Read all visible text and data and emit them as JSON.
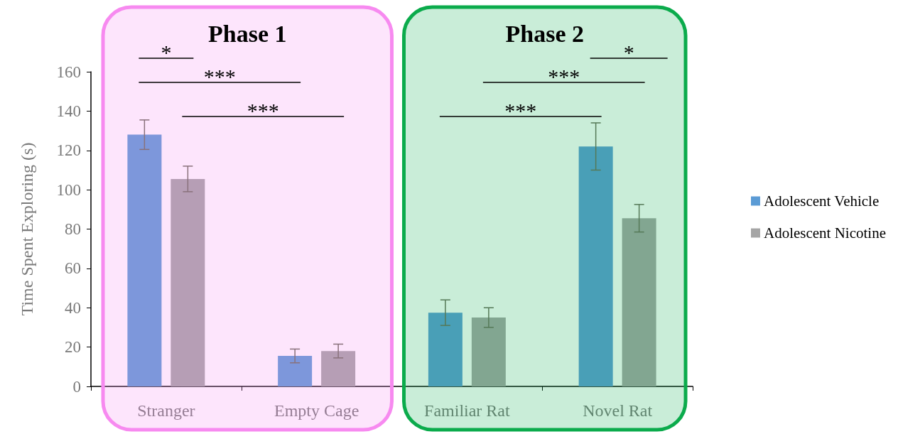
{
  "chart_data": {
    "type": "bar",
    "ylabel": "Time Spent Exploring (s)",
    "categories": [
      "Stranger",
      "Empty Cage",
      "Familiar Rat",
      "Novel Rat"
    ],
    "series": [
      {
        "name": "Adolescent Vehicle",
        "color": "#5b9bd5",
        "values": [
          128,
          15.5,
          37.5,
          122
        ],
        "errors": [
          7.5,
          3.5,
          6.5,
          12
        ]
      },
      {
        "name": "Adolescent Nicotine",
        "color": "#a5a5a5",
        "values": [
          105.5,
          18,
          35,
          85.5
        ],
        "errors": [
          6.5,
          3.5,
          5,
          7
        ]
      }
    ],
    "ylim": [
      0,
      160
    ],
    "yticks": [
      0,
      20,
      40,
      60,
      80,
      100,
      120,
      140,
      160
    ],
    "bands": [
      {
        "axis": "x",
        "from": "Stranger",
        "to": "Empty Cage",
        "label": "Phase 1",
        "color": "#f78af0"
      },
      {
        "axis": "x",
        "from": "Familiar Rat",
        "to": "Novel Rat",
        "label": "Phase 2",
        "color": "#0bab4c"
      }
    ],
    "annotations": [
      "*",
      "***",
      "***",
      "*",
      "***",
      "***"
    ],
    "legend": "right",
    "grid": false
  }
}
